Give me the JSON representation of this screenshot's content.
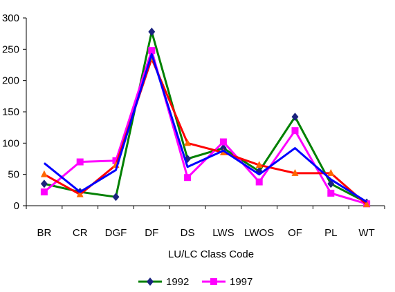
{
  "chart_data": {
    "type": "line",
    "title": "",
    "xlabel": "LU/LC Class Code",
    "ylabel": "",
    "ylim": [
      0,
      300
    ],
    "yticks": [
      0,
      50,
      100,
      150,
      200,
      250,
      300
    ],
    "categories": [
      "BR",
      "CR",
      "DGF",
      "DF",
      "DS",
      "LWS",
      "LWOS",
      "OF",
      "PL",
      "WT"
    ],
    "grid": false,
    "legend_position": "bottom",
    "series": [
      {
        "name": "1992",
        "color": "#1a237e",
        "line_color": "#008000",
        "marker": "diamond",
        "values": [
          35,
          22,
          14,
          278,
          75,
          92,
          55,
          142,
          35,
          5
        ]
      },
      {
        "name": "1997",
        "color": "#ff00ff",
        "line_color": "#ff00ff",
        "marker": "square",
        "values": [
          22,
          70,
          72,
          248,
          45,
          102,
          38,
          120,
          20,
          3
        ]
      },
      {
        "name": "",
        "color": "#ff6600",
        "line_color": "#ff0000",
        "marker": "triangle",
        "values": [
          50,
          18,
          65,
          235,
          100,
          85,
          65,
          52,
          52,
          2
        ]
      },
      {
        "name": "",
        "color": "#0000ff",
        "line_color": "#0000ff",
        "marker": "none",
        "values": [
          68,
          22,
          57,
          242,
          62,
          88,
          50,
          92,
          42,
          6
        ]
      }
    ]
  }
}
